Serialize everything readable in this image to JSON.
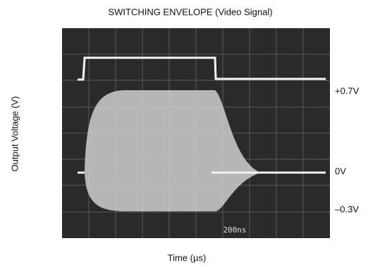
{
  "title": "SWITCHING ENVELOPE (Video Signal)",
  "y_axis_label": "Output Voltage (V)",
  "x_axis_label": "Time (µs)",
  "level_labels": [
    "+0.7V",
    "0V",
    "–0.3V"
  ],
  "scope_readout": "200ns"
}
